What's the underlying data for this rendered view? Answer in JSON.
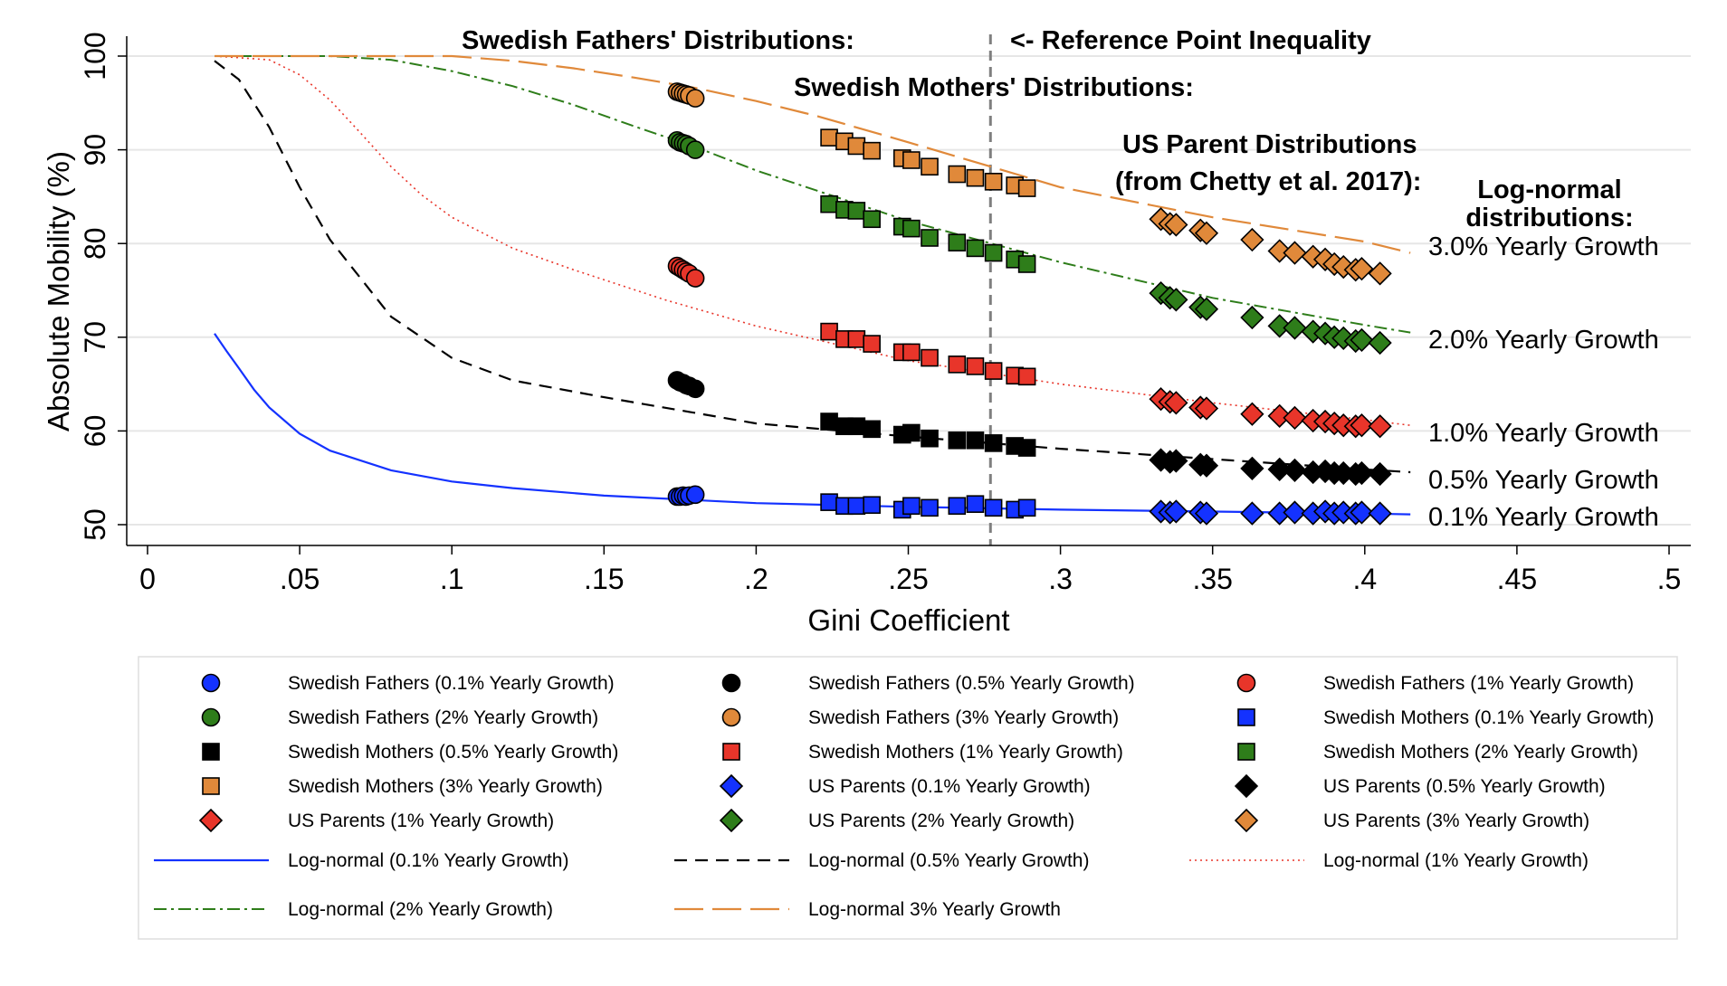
{
  "chart_data": {
    "type": "scatter",
    "title": "",
    "xlabel": "Gini Coefficient",
    "ylabel": "Absolute Mobility (%)",
    "xlim": [
      0,
      0.5
    ],
    "ylim": [
      50,
      100
    ],
    "xticks": [
      0,
      0.05,
      0.1,
      0.15,
      0.2,
      0.25,
      0.3,
      0.35,
      0.4,
      0.45,
      0.5
    ],
    "xtick_labels": [
      "0",
      ".05",
      ".1",
      ".15",
      ".2",
      ".25",
      ".3",
      ".35",
      ".4",
      ".45",
      ".5"
    ],
    "yticks": [
      50,
      60,
      70,
      80,
      90,
      100
    ],
    "ytick_labels": [
      "50",
      "60",
      "70",
      "80",
      "90",
      "100"
    ],
    "grid": "horizontal",
    "legend_position": "bottom",
    "reference_line": {
      "x": 0.277,
      "label": "<- Reference Point Inequality"
    },
    "annotations": [
      {
        "text": "Swedish Fathers' Distributions:"
      },
      {
        "text": "Swedish Mothers' Distributions:"
      },
      {
        "text": "US Parent Distributions"
      },
      {
        "text": "(from Chetty et al. 2017):"
      },
      {
        "text": "Log-normal"
      },
      {
        "text": "distributions:"
      }
    ],
    "right_labels": [
      {
        "text": "3.0% Yearly Growth",
        "color": "#000000"
      },
      {
        "text": "2.0% Yearly Growth",
        "color": "#000000"
      },
      {
        "text": "1.0% Yearly Growth",
        "color": "#000000"
      },
      {
        "text": "0.5% Yearly Growth",
        "color": "#000000"
      },
      {
        "text": "0.1% Yearly Growth",
        "color": "#000000"
      }
    ],
    "series": [
      {
        "name": "Swedish Fathers (0.1% Yearly Growth)",
        "kind": "points",
        "marker": "circle",
        "color": "#1432ff",
        "x": [
          0.174,
          0.175,
          0.176,
          0.177,
          0.178,
          0.18
        ],
        "y": [
          53.0,
          53.0,
          53.1,
          53.0,
          53.1,
          53.2
        ]
      },
      {
        "name": "Swedish Fathers (0.5% Yearly Growth)",
        "kind": "points",
        "marker": "circle",
        "color": "#000000",
        "x": [
          0.174,
          0.175,
          0.176,
          0.177,
          0.178,
          0.18
        ],
        "y": [
          65.4,
          65.2,
          65.1,
          64.9,
          64.8,
          64.5
        ]
      },
      {
        "name": "Swedish Fathers (1% Yearly Growth)",
        "kind": "points",
        "marker": "circle",
        "color": "#e8352a",
        "x": [
          0.174,
          0.175,
          0.176,
          0.177,
          0.178,
          0.18
        ],
        "y": [
          77.6,
          77.4,
          77.2,
          77.0,
          76.8,
          76.3
        ]
      },
      {
        "name": "Swedish Fathers (2% Yearly Growth)",
        "kind": "points",
        "marker": "circle",
        "color": "#2e7d1a",
        "x": [
          0.174,
          0.175,
          0.176,
          0.177,
          0.178,
          0.18
        ],
        "y": [
          91.0,
          90.8,
          90.7,
          90.6,
          90.4,
          90.0
        ]
      },
      {
        "name": "Swedish Fathers (3% Yearly Growth)",
        "kind": "points",
        "marker": "circle",
        "color": "#e0893a",
        "x": [
          0.174,
          0.175,
          0.176,
          0.177,
          0.178,
          0.18
        ],
        "y": [
          96.2,
          96.1,
          96.0,
          95.9,
          95.8,
          95.5
        ]
      },
      {
        "name": "Swedish Mothers (0.1% Yearly Growth)",
        "kind": "points",
        "marker": "square",
        "color": "#1432ff",
        "x": [
          0.224,
          0.229,
          0.233,
          0.238,
          0.248,
          0.251,
          0.257,
          0.266,
          0.272,
          0.278,
          0.285,
          0.289
        ],
        "y": [
          52.4,
          52.0,
          52.0,
          52.1,
          51.6,
          52.0,
          51.8,
          52.0,
          52.2,
          51.8,
          51.6,
          51.8
        ]
      },
      {
        "name": "Swedish Mothers (0.5% Yearly Growth)",
        "kind": "points",
        "marker": "square",
        "color": "#000000",
        "x": [
          0.224,
          0.229,
          0.233,
          0.238,
          0.248,
          0.251,
          0.257,
          0.266,
          0.272,
          0.278,
          0.285,
          0.289
        ],
        "y": [
          61.0,
          60.5,
          60.5,
          60.2,
          59.6,
          59.8,
          59.2,
          59.0,
          59.0,
          58.7,
          58.4,
          58.2
        ]
      },
      {
        "name": "Swedish Mothers (1% Yearly Growth)",
        "kind": "points",
        "marker": "square",
        "color": "#e8352a",
        "x": [
          0.224,
          0.229,
          0.233,
          0.238,
          0.248,
          0.251,
          0.257,
          0.266,
          0.272,
          0.278,
          0.285,
          0.289
        ],
        "y": [
          70.6,
          69.8,
          69.8,
          69.3,
          68.4,
          68.4,
          67.8,
          67.1,
          66.9,
          66.4,
          65.9,
          65.8
        ]
      },
      {
        "name": "Swedish Mothers (2% Yearly Growth)",
        "kind": "points",
        "marker": "square",
        "color": "#2e7d1a",
        "x": [
          0.224,
          0.229,
          0.233,
          0.238,
          0.248,
          0.251,
          0.257,
          0.266,
          0.272,
          0.278,
          0.285,
          0.289
        ],
        "y": [
          84.2,
          83.6,
          83.5,
          82.6,
          81.8,
          81.6,
          80.6,
          80.1,
          79.5,
          79.0,
          78.3,
          77.8
        ]
      },
      {
        "name": "Swedish Mothers (3% Yearly Growth)",
        "kind": "points",
        "marker": "square",
        "color": "#e0893a",
        "x": [
          0.224,
          0.229,
          0.233,
          0.238,
          0.248,
          0.251,
          0.257,
          0.266,
          0.272,
          0.278,
          0.285,
          0.289
        ],
        "y": [
          91.3,
          90.9,
          90.4,
          89.9,
          89.1,
          88.9,
          88.2,
          87.4,
          87.0,
          86.6,
          86.2,
          85.9
        ]
      },
      {
        "name": "US Parents (0.1% Yearly Growth)",
        "kind": "points",
        "marker": "diamond",
        "color": "#1432ff",
        "x": [
          0.333,
          0.336,
          0.338,
          0.346,
          0.348,
          0.363,
          0.372,
          0.377,
          0.383,
          0.387,
          0.39,
          0.393,
          0.397,
          0.399,
          0.405
        ],
        "y": [
          51.4,
          51.3,
          51.4,
          51.3,
          51.2,
          51.2,
          51.2,
          51.3,
          51.2,
          51.4,
          51.2,
          51.3,
          51.2,
          51.3,
          51.2
        ]
      },
      {
        "name": "US Parents (0.5% Yearly Growth)",
        "kind": "points",
        "marker": "diamond",
        "color": "#000000",
        "x": [
          0.333,
          0.336,
          0.338,
          0.346,
          0.348,
          0.363,
          0.372,
          0.377,
          0.383,
          0.387,
          0.39,
          0.393,
          0.397,
          0.399,
          0.405
        ],
        "y": [
          56.9,
          56.7,
          56.8,
          56.4,
          56.3,
          56.0,
          55.9,
          55.8,
          55.6,
          55.7,
          55.5,
          55.5,
          55.4,
          55.5,
          55.4
        ]
      },
      {
        "name": "US Parents (1% Yearly Growth)",
        "kind": "points",
        "marker": "diamond",
        "color": "#e8352a",
        "x": [
          0.333,
          0.336,
          0.338,
          0.346,
          0.348,
          0.363,
          0.372,
          0.377,
          0.383,
          0.387,
          0.39,
          0.393,
          0.397,
          0.399,
          0.405
        ],
        "y": [
          63.4,
          63.1,
          63.0,
          62.5,
          62.4,
          61.8,
          61.6,
          61.4,
          61.1,
          61.0,
          60.8,
          60.6,
          60.5,
          60.6,
          60.5
        ]
      },
      {
        "name": "US Parents (2% Yearly Growth)",
        "kind": "points",
        "marker": "diamond",
        "color": "#2e7d1a",
        "x": [
          0.333,
          0.336,
          0.338,
          0.346,
          0.348,
          0.363,
          0.372,
          0.377,
          0.383,
          0.387,
          0.39,
          0.393,
          0.397,
          0.399,
          0.405
        ],
        "y": [
          74.7,
          74.2,
          74.0,
          73.2,
          73.0,
          72.1,
          71.2,
          71.0,
          70.6,
          70.4,
          70.0,
          69.9,
          69.6,
          69.7,
          69.4
        ]
      },
      {
        "name": "US Parents (3% Yearly Growth)",
        "kind": "points",
        "marker": "diamond",
        "color": "#e0893a",
        "x": [
          0.333,
          0.336,
          0.338,
          0.346,
          0.348,
          0.363,
          0.372,
          0.377,
          0.383,
          0.387,
          0.39,
          0.393,
          0.397,
          0.399,
          0.405
        ],
        "y": [
          82.6,
          82.1,
          82.0,
          81.4,
          81.1,
          80.4,
          79.2,
          79.0,
          78.6,
          78.3,
          77.8,
          77.5,
          77.2,
          77.3,
          76.8
        ]
      },
      {
        "name": "Log-normal (0.1% Yearly Growth)",
        "kind": "line",
        "dash": "solid",
        "color": "#1432ff",
        "x": [
          0.022,
          0.026,
          0.03,
          0.035,
          0.04,
          0.05,
          0.06,
          0.08,
          0.1,
          0.12,
          0.15,
          0.2,
          0.25,
          0.3,
          0.35,
          0.4,
          0.415
        ],
        "y": [
          70.4,
          68.5,
          66.7,
          64.4,
          62.5,
          59.7,
          57.9,
          55.8,
          54.6,
          53.9,
          53.1,
          52.3,
          51.9,
          51.6,
          51.4,
          51.2,
          51.1
        ]
      },
      {
        "name": "Log-normal (0.5% Yearly Growth)",
        "kind": "line",
        "dash": "dashed",
        "color": "#000000",
        "x": [
          0.022,
          0.03,
          0.04,
          0.05,
          0.06,
          0.08,
          0.1,
          0.12,
          0.15,
          0.2,
          0.25,
          0.3,
          0.35,
          0.4,
          0.415
        ],
        "y": [
          99.5,
          97.5,
          92.4,
          86.0,
          80.4,
          72.2,
          67.8,
          65.4,
          63.6,
          60.8,
          59.4,
          58.1,
          57.0,
          55.9,
          55.6
        ]
      },
      {
        "name": "Log-normal (1% Yearly Growth)",
        "kind": "line",
        "dash": "dotted",
        "color": "#e8352a",
        "x": [
          0.022,
          0.04,
          0.05,
          0.06,
          0.07,
          0.08,
          0.09,
          0.1,
          0.12,
          0.14,
          0.17,
          0.2,
          0.25,
          0.3,
          0.35,
          0.4,
          0.415
        ],
        "y": [
          100.0,
          99.6,
          98.0,
          95.3,
          91.8,
          88.2,
          85.2,
          82.8,
          79.5,
          77.2,
          74.0,
          71.2,
          67.5,
          65.0,
          63.0,
          61.2,
          60.6
        ]
      },
      {
        "name": "Log-normal (2% Yearly Growth)",
        "kind": "line",
        "dash": "dashdot",
        "color": "#2e7d1a",
        "x": [
          0.022,
          0.06,
          0.08,
          0.1,
          0.12,
          0.14,
          0.16,
          0.18,
          0.2,
          0.25,
          0.3,
          0.35,
          0.4,
          0.415
        ],
        "y": [
          100.0,
          100.0,
          99.6,
          98.4,
          96.8,
          94.8,
          92.5,
          90.3,
          87.8,
          82.4,
          78.0,
          74.2,
          71.3,
          70.5
        ]
      },
      {
        "name": "Log-normal 3% Yearly Growth",
        "kind": "line",
        "dash": "longdash",
        "color": "#e0893a",
        "x": [
          0.022,
          0.1,
          0.12,
          0.14,
          0.16,
          0.18,
          0.2,
          0.22,
          0.25,
          0.3,
          0.35,
          0.4,
          0.415
        ],
        "y": [
          100.0,
          100.0,
          99.5,
          98.7,
          97.7,
          96.6,
          95.2,
          93.6,
          90.8,
          86.0,
          82.8,
          80.2,
          79.0
        ]
      }
    ]
  }
}
